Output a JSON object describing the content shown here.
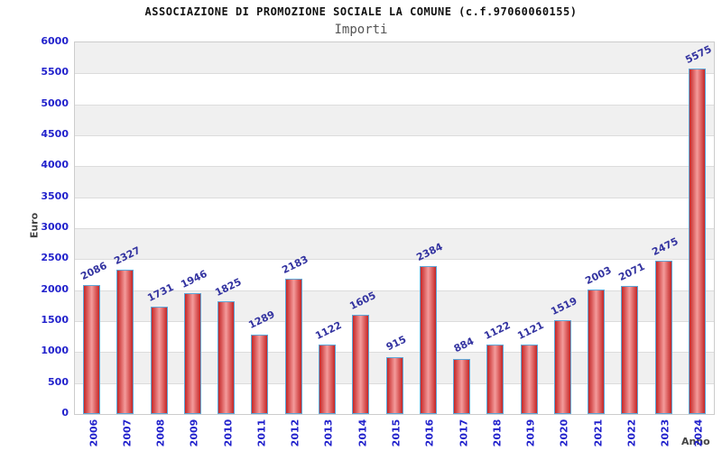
{
  "chart_data": {
    "type": "bar",
    "title": "ASSOCIAZIONE DI PROMOZIONE SOCIALE LA COMUNE (c.f.97060060155)",
    "subtitle": "Importi",
    "xlabel": "Anno",
    "ylabel": "Euro",
    "categories": [
      "2006",
      "2007",
      "2008",
      "2009",
      "2010",
      "2011",
      "2012",
      "2013",
      "2014",
      "2015",
      "2016",
      "2017",
      "2018",
      "2019",
      "2020",
      "2021",
      "2022",
      "2023",
      "2024"
    ],
    "values": [
      2086,
      2327,
      1731,
      1946,
      1825,
      1289,
      2183,
      1122,
      1605,
      915,
      2384,
      884,
      1122,
      1121,
      1519,
      2003,
      2071,
      2475,
      5575
    ],
    "ylim": [
      0,
      6000
    ],
    "yticks": [
      0,
      500,
      1000,
      1500,
      2000,
      2500,
      3000,
      3500,
      4000,
      4500,
      5000,
      5500,
      6000
    ],
    "grid": true,
    "legend": null,
    "colors": {
      "bar_fill_edge": "#c52626",
      "bar_fill_center": "#f49c9c",
      "bar_border": "#5ea7d8",
      "axis_tick_label": "#2222cc",
      "value_label": "#3333a0",
      "band_gray": "#f0f0f0",
      "gridline": "#dcdcdc",
      "plot_border": "#cccccc",
      "title": "#111111",
      "subtitle": "#555555",
      "axis_title": "#444444"
    }
  }
}
